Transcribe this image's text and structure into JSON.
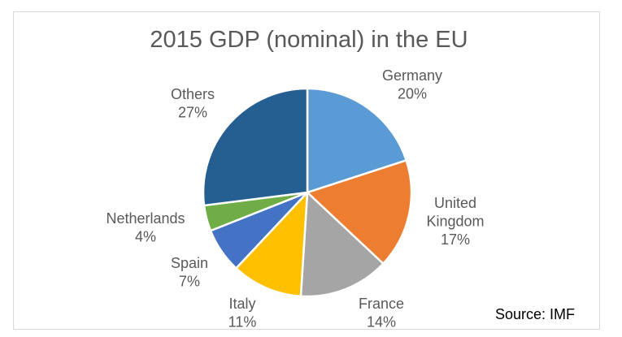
{
  "chart_data": {
    "type": "pie",
    "title": "2015 GDP (nominal) in the EU",
    "source": "Source: IMF",
    "slices": [
      {
        "label": "Germany",
        "value": 20,
        "pct_label": "20%",
        "color": "#5B9BD5"
      },
      {
        "label": "United Kingdom",
        "label_lines": [
          "United",
          "Kingdom"
        ],
        "value": 17,
        "pct_label": "17%",
        "color": "#ED7D31"
      },
      {
        "label": "France",
        "value": 14,
        "pct_label": "14%",
        "color": "#A5A5A5"
      },
      {
        "label": "Italy",
        "value": 11,
        "pct_label": "11%",
        "color": "#FFC000"
      },
      {
        "label": "Spain",
        "value": 7,
        "pct_label": "7%",
        "color": "#4472C4"
      },
      {
        "label": "Netherlands",
        "value": 4,
        "pct_label": "4%",
        "color": "#70AD47"
      },
      {
        "label": "Others",
        "value": 27,
        "pct_label": "27%",
        "color": "#255E91"
      }
    ]
  }
}
